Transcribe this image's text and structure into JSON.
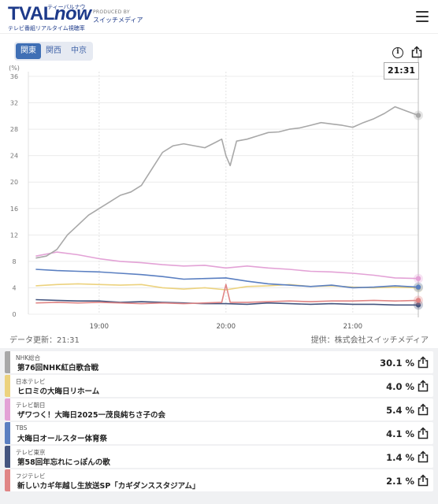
{
  "header": {
    "logo_main": "TVAL",
    "logo_now": "now",
    "logo_kana": "ティーバルナウ",
    "logo_sub": "テレビ番組リアルタイム視聴率",
    "producer_label": "PRODUCED BY",
    "producer_name": "スイッチメディア"
  },
  "tabs": [
    {
      "label": "関東",
      "active": true
    },
    {
      "label": "関西",
      "active": false
    },
    {
      "label": "中京",
      "active": false
    }
  ],
  "time_badge": "21:31",
  "update_text": "データ更新：21:31",
  "provider_text": "提供：株式会社スイッチメディア",
  "colors": {
    "nhk": "#a8a8a8",
    "ntv": "#ecd27e",
    "ex": "#e3a2d6",
    "tbs": "#5a7fc1",
    "tx": "#44557f",
    "cx": "#e08585"
  },
  "chart_data": {
    "type": "line",
    "ylabel": "(%)",
    "ylim": [
      0,
      36
    ],
    "yticks": [
      0,
      4,
      8,
      12,
      16,
      20,
      24,
      28,
      32,
      36
    ],
    "xlim": [
      "18:30",
      "21:31"
    ],
    "xticks": [
      "19:00",
      "20:00",
      "21:00"
    ],
    "series": [
      {
        "name": "NHK総合",
        "color": "#a8a8a8",
        "points": [
          [
            "18:30",
            8.5
          ],
          [
            "18:35",
            8.8
          ],
          [
            "18:40",
            9.8
          ],
          [
            "18:45",
            12.0
          ],
          [
            "18:50",
            13.5
          ],
          [
            "18:55",
            15.0
          ],
          [
            "19:00",
            16.0
          ],
          [
            "19:05",
            17.0
          ],
          [
            "19:10",
            18.0
          ],
          [
            "19:15",
            18.5
          ],
          [
            "19:20",
            19.5
          ],
          [
            "19:25",
            22.0
          ],
          [
            "19:30",
            24.5
          ],
          [
            "19:35",
            25.5
          ],
          [
            "19:40",
            25.8
          ],
          [
            "19:45",
            25.5
          ],
          [
            "19:50",
            25.2
          ],
          [
            "19:55",
            26.0
          ],
          [
            "19:58",
            26.5
          ],
          [
            "20:00",
            24.0
          ],
          [
            "20:02",
            22.5
          ],
          [
            "20:05",
            26.2
          ],
          [
            "20:10",
            26.5
          ],
          [
            "20:15",
            27.0
          ],
          [
            "20:20",
            27.5
          ],
          [
            "20:25",
            27.6
          ],
          [
            "20:30",
            28.0
          ],
          [
            "20:35",
            28.2
          ],
          [
            "20:40",
            28.6
          ],
          [
            "20:45",
            29.0
          ],
          [
            "20:50",
            28.8
          ],
          [
            "20:55",
            28.6
          ],
          [
            "21:00",
            28.3
          ],
          [
            "21:05",
            29.0
          ],
          [
            "21:10",
            29.6
          ],
          [
            "21:15",
            30.4
          ],
          [
            "21:20",
            31.4
          ],
          [
            "21:25",
            30.8
          ],
          [
            "21:31",
            30.1
          ]
        ]
      },
      {
        "name": "日本テレビ",
        "color": "#ecd27e",
        "points": [
          [
            "18:30",
            4.3
          ],
          [
            "18:40",
            4.5
          ],
          [
            "18:50",
            4.6
          ],
          [
            "19:00",
            4.5
          ],
          [
            "19:10",
            4.4
          ],
          [
            "19:20",
            4.5
          ],
          [
            "19:30",
            4.0
          ],
          [
            "19:40",
            3.8
          ],
          [
            "19:50",
            4.0
          ],
          [
            "20:00",
            3.7
          ],
          [
            "20:10",
            4.2
          ],
          [
            "20:20",
            4.3
          ],
          [
            "20:30",
            4.5
          ],
          [
            "20:40",
            4.2
          ],
          [
            "20:50",
            4.3
          ],
          [
            "21:00",
            4.1
          ],
          [
            "21:10",
            4.0
          ],
          [
            "21:20",
            4.1
          ],
          [
            "21:31",
            4.0
          ]
        ]
      },
      {
        "name": "テレビ朝日",
        "color": "#e3a2d6",
        "points": [
          [
            "18:30",
            8.8
          ],
          [
            "18:40",
            9.4
          ],
          [
            "18:50",
            9.0
          ],
          [
            "19:00",
            8.4
          ],
          [
            "19:10",
            8.0
          ],
          [
            "19:20",
            7.8
          ],
          [
            "19:30",
            7.5
          ],
          [
            "19:40",
            7.3
          ],
          [
            "19:50",
            7.4
          ],
          [
            "20:00",
            7.0
          ],
          [
            "20:10",
            7.3
          ],
          [
            "20:20",
            7.0
          ],
          [
            "20:30",
            6.8
          ],
          [
            "20:40",
            6.5
          ],
          [
            "20:50",
            6.4
          ],
          [
            "21:00",
            6.2
          ],
          [
            "21:10",
            5.9
          ],
          [
            "21:20",
            5.5
          ],
          [
            "21:31",
            5.4
          ]
        ]
      },
      {
        "name": "TBS",
        "color": "#5a7fc1",
        "points": [
          [
            "18:30",
            6.8
          ],
          [
            "18:40",
            6.6
          ],
          [
            "18:50",
            6.5
          ],
          [
            "19:00",
            6.4
          ],
          [
            "19:10",
            6.2
          ],
          [
            "19:20",
            6.0
          ],
          [
            "19:30",
            5.7
          ],
          [
            "19:40",
            5.3
          ],
          [
            "19:50",
            5.4
          ],
          [
            "20:00",
            5.5
          ],
          [
            "20:10",
            5.0
          ],
          [
            "20:20",
            4.6
          ],
          [
            "20:30",
            4.4
          ],
          [
            "20:40",
            4.2
          ],
          [
            "20:50",
            4.4
          ],
          [
            "21:00",
            4.0
          ],
          [
            "21:10",
            4.1
          ],
          [
            "21:20",
            4.3
          ],
          [
            "21:31",
            4.1
          ]
        ]
      },
      {
        "name": "テレビ東京",
        "color": "#44557f",
        "points": [
          [
            "18:30",
            2.2
          ],
          [
            "18:40",
            2.1
          ],
          [
            "18:50",
            2.0
          ],
          [
            "19:00",
            2.0
          ],
          [
            "19:10",
            1.8
          ],
          [
            "19:20",
            1.9
          ],
          [
            "19:30",
            1.8
          ],
          [
            "19:40",
            1.7
          ],
          [
            "19:50",
            1.6
          ],
          [
            "20:00",
            1.6
          ],
          [
            "20:10",
            1.5
          ],
          [
            "20:20",
            1.7
          ],
          [
            "20:30",
            1.6
          ],
          [
            "20:40",
            1.5
          ],
          [
            "20:50",
            1.6
          ],
          [
            "21:00",
            1.5
          ],
          [
            "21:10",
            1.5
          ],
          [
            "21:20",
            1.4
          ],
          [
            "21:31",
            1.4
          ]
        ]
      },
      {
        "name": "フジテレビ",
        "color": "#e08585",
        "points": [
          [
            "18:30",
            1.7
          ],
          [
            "18:40",
            1.8
          ],
          [
            "18:50",
            1.7
          ],
          [
            "19:00",
            1.8
          ],
          [
            "19:10",
            1.7
          ],
          [
            "19:20",
            1.6
          ],
          [
            "19:30",
            1.7
          ],
          [
            "19:40",
            1.6
          ],
          [
            "19:50",
            1.7
          ],
          [
            "19:58",
            1.8
          ],
          [
            "20:00",
            4.5
          ],
          [
            "20:02",
            1.8
          ],
          [
            "20:10",
            1.8
          ],
          [
            "20:20",
            1.9
          ],
          [
            "20:30",
            2.0
          ],
          [
            "20:40",
            1.9
          ],
          [
            "20:50",
            2.0
          ],
          [
            "21:00",
            2.0
          ],
          [
            "21:10",
            2.1
          ],
          [
            "21:20",
            2.0
          ],
          [
            "21:31",
            2.1
          ]
        ]
      }
    ]
  },
  "programs": [
    {
      "channel": "NHK総合",
      "title": "第76回NHK紅白歌合戦",
      "value": "30.1 %",
      "color_key": "nhk"
    },
    {
      "channel": "日本テレビ",
      "title": "ヒロミの大晦日リホーム",
      "value": "4.0 %",
      "color_key": "ntv"
    },
    {
      "channel": "テレビ朝日",
      "title": "ザワつく！大晦日2025一茂良純ちさ子の会",
      "value": "5.4 %",
      "color_key": "ex"
    },
    {
      "channel": "TBS",
      "title": "大晦日オールスター体育祭",
      "value": "4.1 %",
      "color_key": "tbs"
    },
    {
      "channel": "テレビ東京",
      "title": "第58回年忘れにっぽんの歌",
      "value": "1.4 %",
      "color_key": "tx"
    },
    {
      "channel": "フジテレビ",
      "title": "新しいカギ年越し生放送SP「カギダンススタジアム」",
      "value": "2.1 %",
      "color_key": "cx"
    }
  ]
}
